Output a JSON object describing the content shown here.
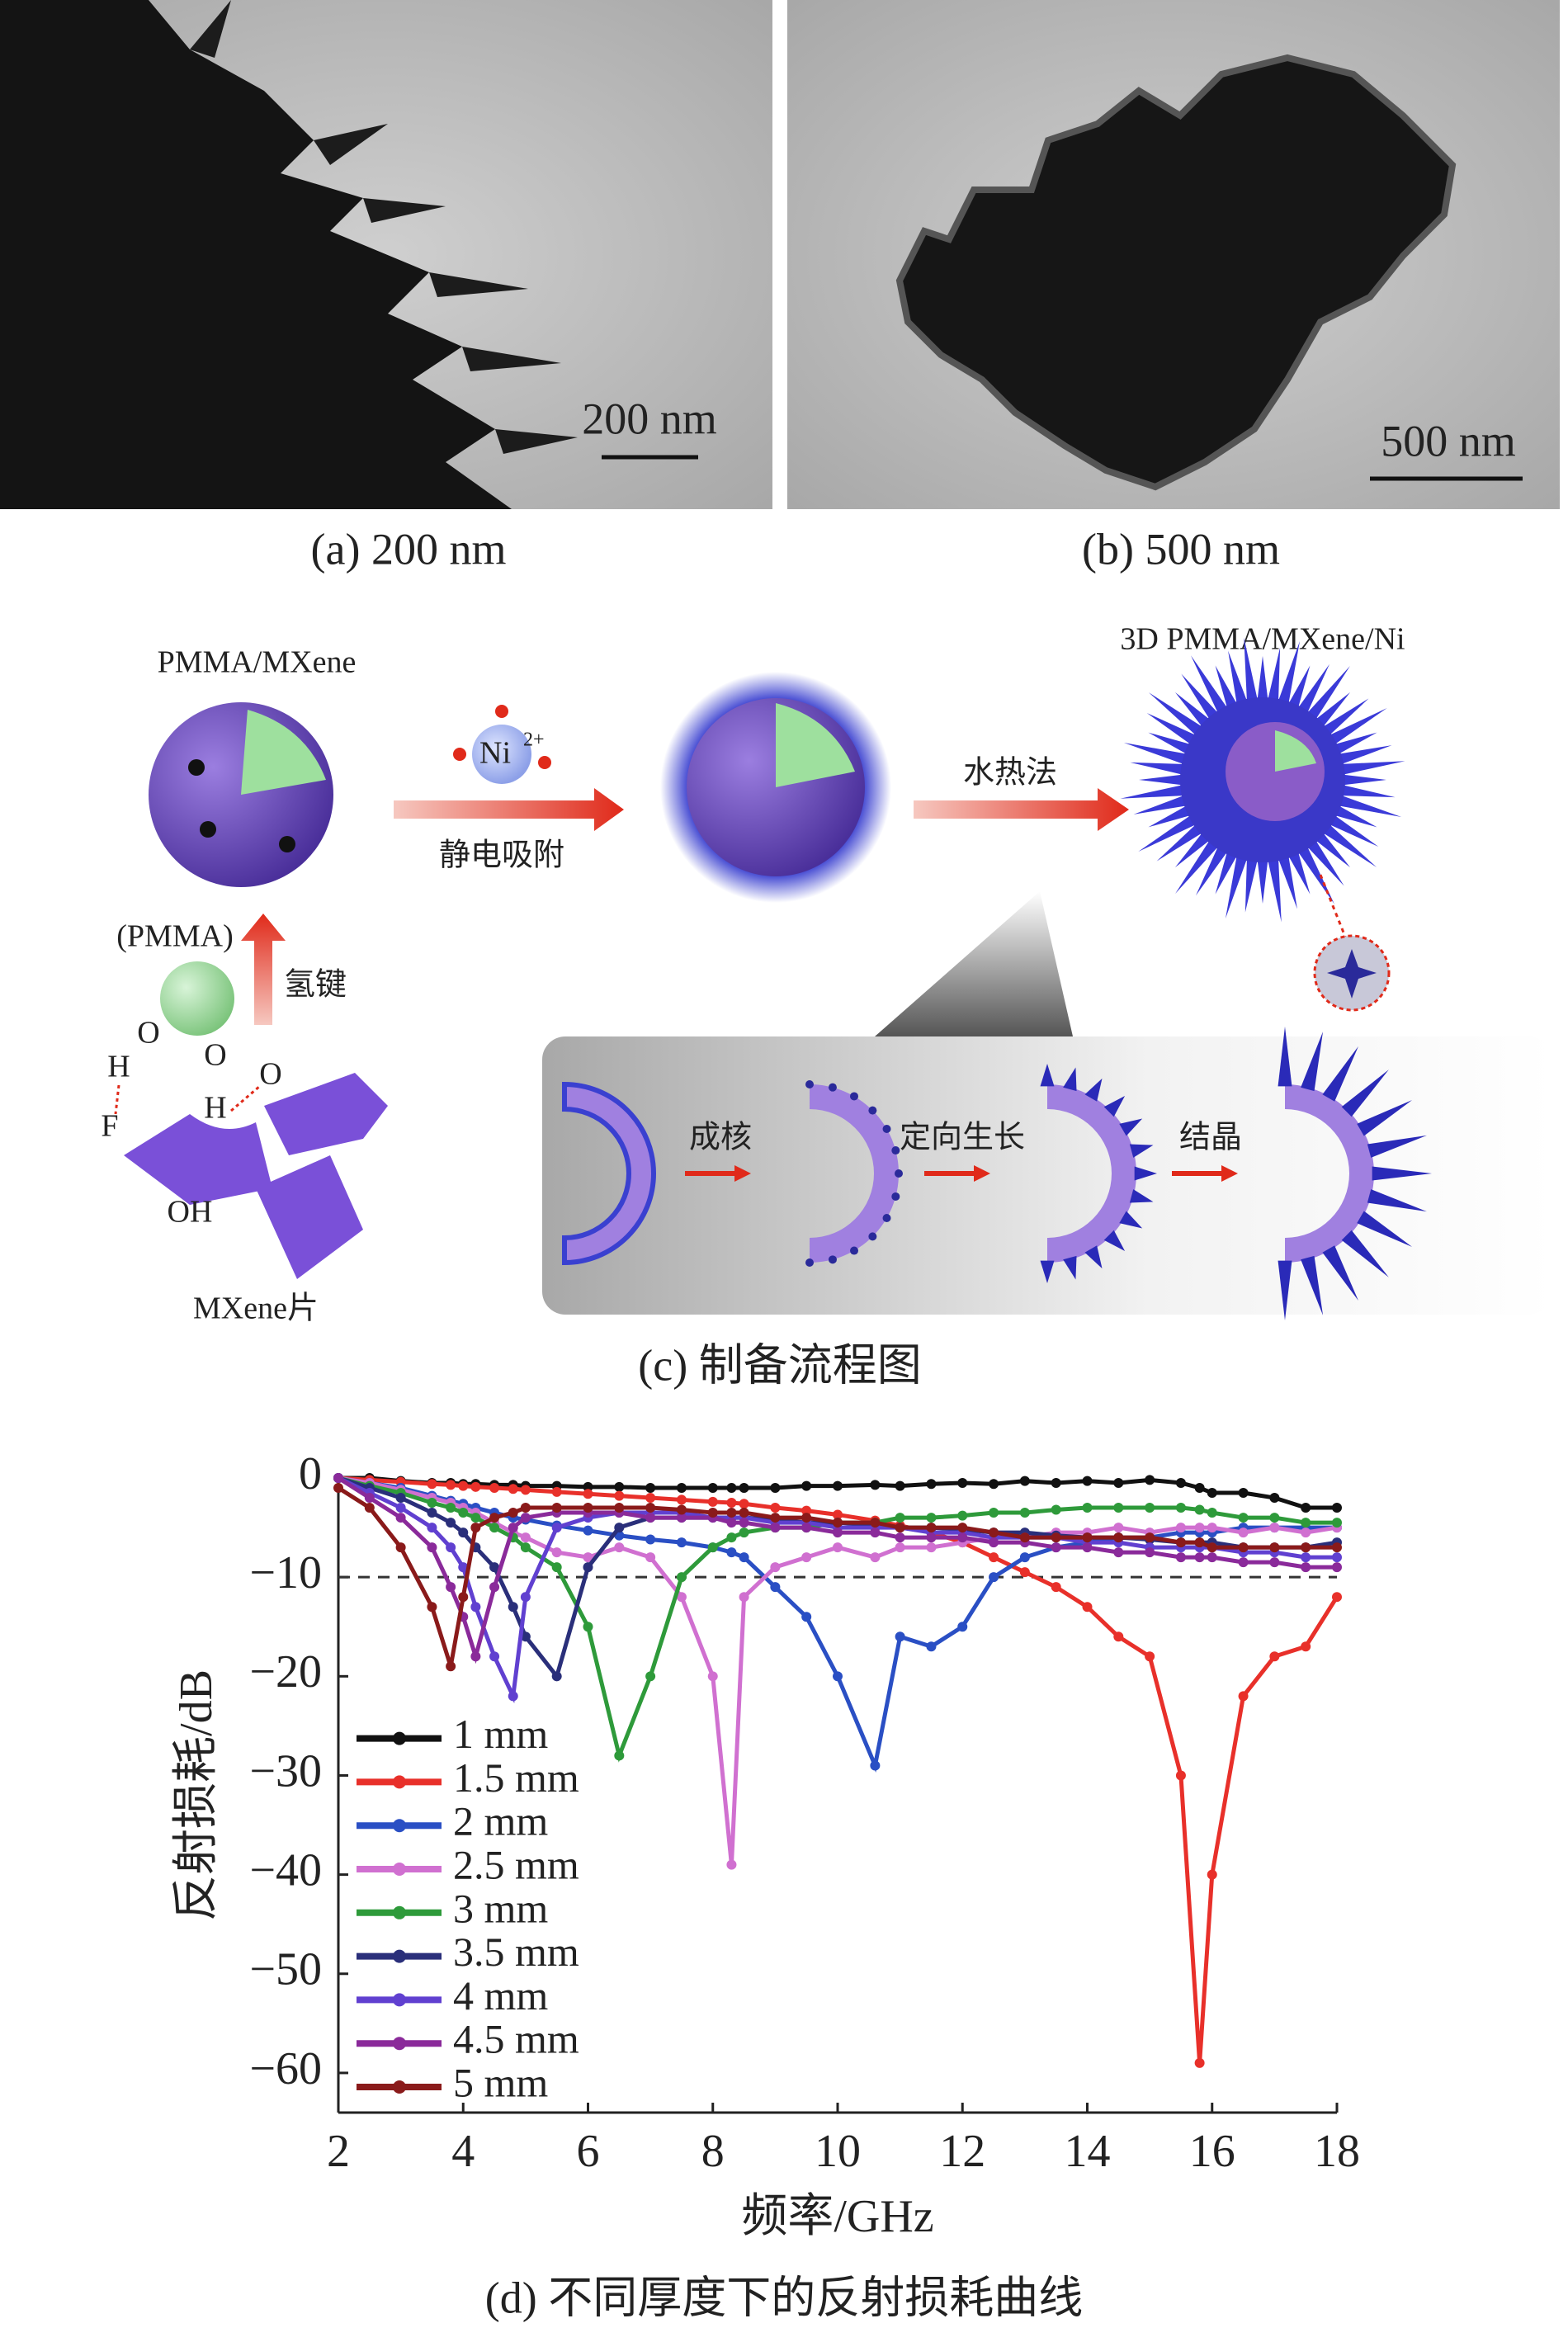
{
  "panels": {
    "a": {
      "caption": "(a) 200 nm",
      "scale_bar": "200 nm"
    },
    "b": {
      "caption": "(b) 500 nm",
      "scale_bar": "500 nm"
    }
  },
  "diagram": {
    "caption": "(c) 制备流程图",
    "start_label": "PMMA/MXene",
    "ion": "Ni",
    "ion_charge": "2+",
    "step1": "静电吸附",
    "step2": "水热法",
    "end_label": "3D PMMA/MXene/Ni",
    "pmma": "(PMMA)",
    "bond": "氢键",
    "atoms": [
      "O",
      "O",
      "H",
      "H",
      "O",
      "F",
      "OH"
    ],
    "sheet": "MXene片",
    "stages": [
      "成核",
      "定向生长",
      "结晶"
    ]
  },
  "chart_data": {
    "type": "line",
    "caption": "(d) 不同厚度下的反射损耗曲线",
    "xlabel": "频率/GHz",
    "ylabel": "反射损耗/dB",
    "x": [
      2,
      2.5,
      3,
      3.5,
      3.8,
      4,
      4.2,
      4.5,
      4.8,
      5,
      5.5,
      6,
      6.5,
      7,
      7.5,
      8,
      8.3,
      8.5,
      9,
      9.5,
      10,
      10.6,
      11,
      11.5,
      12,
      12.5,
      13,
      13.5,
      14,
      14.5,
      15,
      15.5,
      15.8,
      16,
      16.5,
      17,
      17.5,
      18
    ],
    "xlim": [
      2,
      18
    ],
    "xticks": [
      2,
      4,
      6,
      8,
      10,
      12,
      14,
      16,
      18
    ],
    "ylim": [
      -64,
      0
    ],
    "yticks": [
      0,
      {
        "value": -10,
        "label": "−10"
      },
      {
        "value": -20,
        "label": "−20"
      },
      {
        "value": -30,
        "label": "−30"
      },
      {
        "value": -40,
        "label": "−40"
      },
      {
        "value": -50,
        "label": "−50"
      },
      {
        "value": -60,
        "label": "−60"
      }
    ],
    "reference_line": -10,
    "legend": "lower left",
    "series": [
      {
        "name": "1 mm",
        "color": "#111111",
        "values": [
          0,
          0,
          -0.3,
          -0.5,
          -0.5,
          -0.6,
          -0.6,
          -0.7,
          -0.7,
          -0.8,
          -0.8,
          -0.9,
          -0.9,
          -1,
          -1,
          -1,
          -1,
          -1,
          -1,
          -0.8,
          -0.8,
          -0.7,
          -0.8,
          -0.6,
          -0.5,
          -0.6,
          -0.3,
          -0.5,
          -0.3,
          -0.5,
          -0.2,
          -0.5,
          -1,
          -1.5,
          -1.5,
          -2,
          -3,
          -3
        ]
      },
      {
        "name": "1.5 mm",
        "color": "#e8302a",
        "values": [
          0,
          -0.2,
          -0.4,
          -0.6,
          -0.7,
          -0.8,
          -0.9,
          -1,
          -1.1,
          -1.2,
          -1.4,
          -1.6,
          -1.8,
          -2,
          -2.2,
          -2.4,
          -2.5,
          -2.6,
          -3,
          -3.3,
          -3.7,
          -4.3,
          -4.8,
          -5.5,
          -6.5,
          -8,
          -9.5,
          -11,
          -13,
          -16,
          -18,
          -30,
          -59,
          -40,
          -22,
          -18,
          -17,
          -12
        ]
      },
      {
        "name": "2 mm",
        "color": "#2a4fc4",
        "values": [
          0,
          -0.5,
          -1,
          -1.8,
          -2.3,
          -2.6,
          -3,
          -3.5,
          -4,
          -4.2,
          -4.8,
          -5.3,
          -5.8,
          -6.2,
          -6.5,
          -7,
          -7.5,
          -8,
          -11,
          -14,
          -20,
          -29,
          -16,
          -17,
          -15,
          -10,
          -8,
          -7,
          -6.5,
          -6,
          -6,
          -5.5,
          -5.5,
          -5.5,
          -5,
          -5,
          -5,
          -5
        ]
      },
      {
        "name": "2.5 mm",
        "color": "#d070d0",
        "values": [
          0,
          -0.5,
          -1.2,
          -2,
          -2.5,
          -3,
          -3.5,
          -4.5,
          -5.5,
          -6,
          -7.5,
          -8,
          -7,
          -8,
          -12,
          -20,
          -39,
          -12,
          -9,
          -8,
          -7,
          -8,
          -7,
          -7,
          -6.5,
          -6,
          -6,
          -5.5,
          -5.5,
          -5,
          -5.5,
          -5,
          -5,
          -5,
          -5.5,
          -5,
          -5.5,
          -5
        ]
      },
      {
        "name": "3 mm",
        "color": "#2e9a3a",
        "values": [
          0,
          -0.8,
          -1.5,
          -2.5,
          -3,
          -3.5,
          -4,
          -5,
          -6,
          -7,
          -9,
          -15,
          -28,
          -20,
          -10,
          -7,
          -6,
          -5.5,
          -5,
          -5,
          -4.5,
          -4.5,
          -4,
          -4,
          -3.8,
          -3.5,
          -3.5,
          -3.2,
          -3,
          -3,
          -3,
          -3,
          -3.2,
          -3.5,
          -4,
          -4,
          -4.5,
          -4.5
        ]
      },
      {
        "name": "3.5 mm",
        "color": "#2a2f7a",
        "values": [
          0,
          -1,
          -2,
          -3.5,
          -4.5,
          -5.5,
          -7,
          -9,
          -13,
          -16,
          -20,
          -9,
          -5,
          -4,
          -4,
          -4,
          -4,
          -4,
          -4.2,
          -4.5,
          -4.5,
          -4.8,
          -5,
          -5,
          -5.2,
          -5.5,
          -5.5,
          -5.8,
          -6,
          -6,
          -6.2,
          -6.5,
          -6.5,
          -6.5,
          -7,
          -7,
          -7,
          -6.5
        ]
      },
      {
        "name": "4 mm",
        "color": "#6040d0",
        "values": [
          0,
          -1.5,
          -3,
          -5,
          -7,
          -9,
          -13,
          -18,
          -22,
          -12,
          -5,
          -4,
          -3.5,
          -3.5,
          -3.5,
          -4,
          -4,
          -4,
          -4.5,
          -4.5,
          -5,
          -5,
          -5,
          -5.5,
          -5.5,
          -6,
          -6,
          -6,
          -6.5,
          -6.5,
          -7,
          -7,
          -7,
          -7,
          -7.5,
          -7.5,
          -8,
          -8
        ]
      },
      {
        "name": "4.5 mm",
        "color": "#8a2a9a",
        "values": [
          0,
          -2,
          -4,
          -7,
          -11,
          -14,
          -18,
          -11,
          -5,
          -4,
          -3.5,
          -3.5,
          -3.5,
          -4,
          -4,
          -4,
          -4.5,
          -4.5,
          -5,
          -5,
          -5.5,
          -5.5,
          -6,
          -6,
          -6,
          -6.5,
          -6.5,
          -7,
          -7,
          -7.5,
          -7.5,
          -8,
          -8,
          -8,
          -8.5,
          -8.5,
          -9,
          -9
        ]
      },
      {
        "name": "5 mm",
        "color": "#8a1a1a",
        "values": [
          -1,
          -3,
          -7,
          -13,
          -19,
          -12,
          -5,
          -4,
          -3.5,
          -3,
          -3,
          -3,
          -3,
          -3,
          -3.2,
          -3.5,
          -3.5,
          -3.5,
          -4,
          -4,
          -4.5,
          -4.5,
          -5,
          -5,
          -5,
          -5.5,
          -6,
          -6,
          -6,
          -6,
          -6,
          -6.5,
          -6.5,
          -7,
          -7,
          -7,
          -7,
          -7
        ]
      }
    ]
  }
}
